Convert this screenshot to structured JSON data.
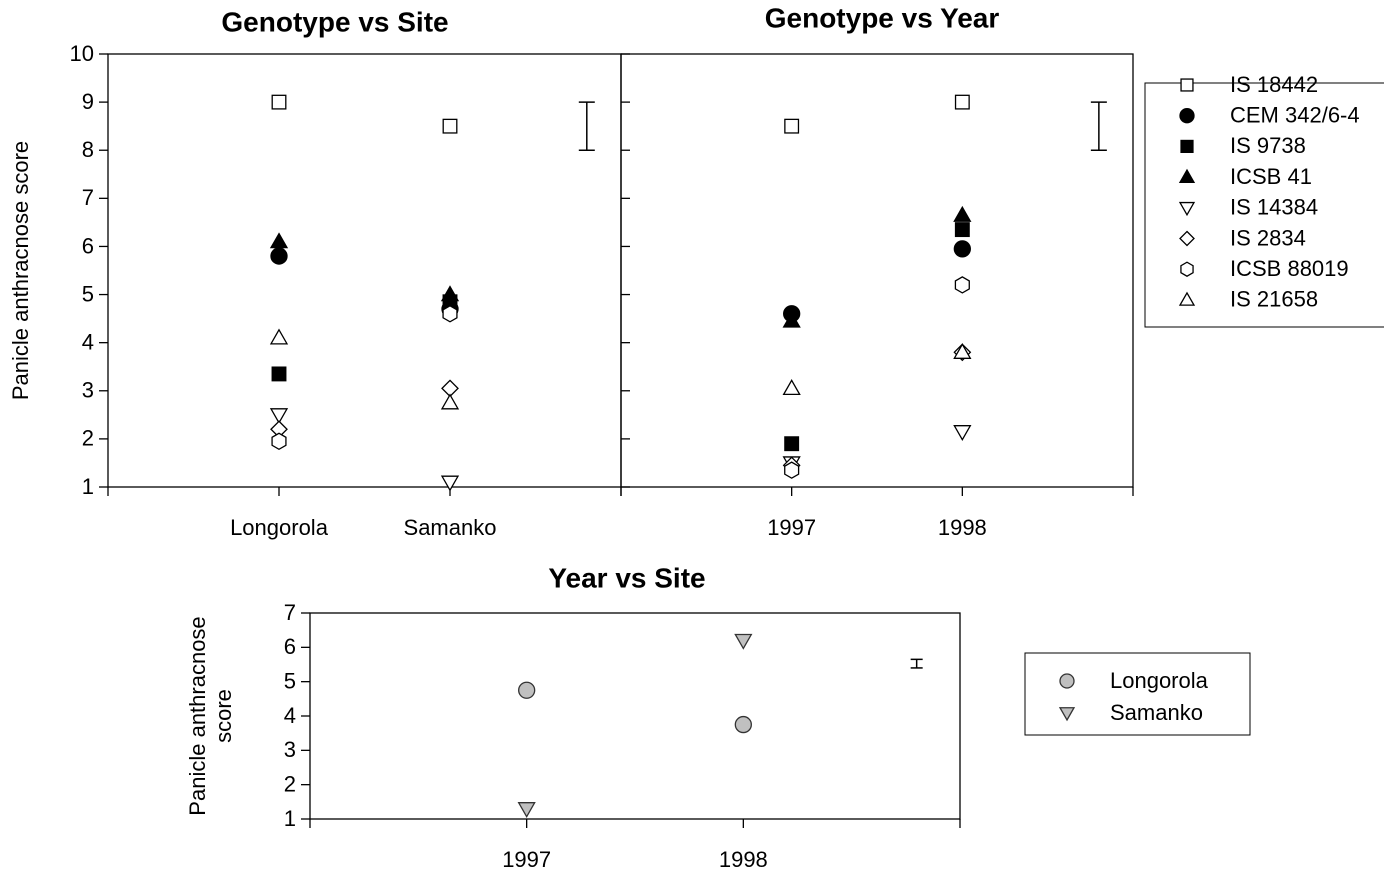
{
  "chart_data": [
    {
      "type": "scatter",
      "title": "Genotype vs Site",
      "ylabel": [
        "Panicle anthracnose score"
      ],
      "categories": [
        "Longorola",
        "Samanko"
      ],
      "ylim": [
        1,
        10
      ],
      "yticks": [
        1,
        2,
        3,
        4,
        5,
        6,
        7,
        8,
        9,
        10
      ],
      "ytick_labels": true,
      "legend": true,
      "series": [
        {
          "name": "IS 18442",
          "marker": "square",
          "color": "#ffffff",
          "values": [
            9.0,
            8.5
          ]
        },
        {
          "name": "CEM 342/6-4",
          "marker": "circle",
          "color": "#000000",
          "values": [
            5.8,
            4.7
          ]
        },
        {
          "name": "IS 9738",
          "marker": "square",
          "color": "#000000",
          "values": [
            3.35,
            4.85
          ]
        },
        {
          "name": "ICSB 41",
          "marker": "triangle",
          "color": "#000000",
          "values": [
            6.1,
            5.0
          ]
        },
        {
          "name": "IS 14384",
          "marker": "triangle-down",
          "color": "#ffffff",
          "values": [
            2.5,
            1.1
          ]
        },
        {
          "name": "IS 2834",
          "marker": "diamond",
          "color": "#ffffff",
          "values": [
            2.2,
            3.05
          ]
        },
        {
          "name": "ICSB 88019",
          "marker": "hexagon",
          "color": "#ffffff",
          "values": [
            1.95,
            4.6
          ]
        },
        {
          "name": "IS 21658",
          "marker": "triangle",
          "color": "#ffffff",
          "values": [
            4.1,
            2.75
          ]
        }
      ],
      "error_bar": {
        "low": 8,
        "high": 9
      }
    },
    {
      "type": "scatter",
      "title": "Genotype vs Year",
      "categories": [
        "1997",
        "1998"
      ],
      "ylim": [
        1,
        10
      ],
      "yticks": [
        1,
        2,
        3,
        4,
        5,
        6,
        7,
        8,
        9,
        10
      ],
      "ytick_labels": false,
      "legend": false,
      "series": [
        {
          "marker": "square",
          "color": "#ffffff",
          "values": [
            8.5,
            9.0
          ]
        },
        {
          "marker": "circle",
          "color": "#000000",
          "values": [
            4.6,
            5.95
          ]
        },
        {
          "marker": "square",
          "color": "#000000",
          "values": [
            1.9,
            6.35
          ]
        },
        {
          "marker": "triangle",
          "color": "#000000",
          "values": [
            4.45,
            6.65
          ]
        },
        {
          "marker": "triangle-down",
          "color": "#ffffff",
          "values": [
            1.5,
            2.15
          ]
        },
        {
          "marker": "diamond",
          "color": "#ffffff",
          "values": [
            1.45,
            3.8
          ]
        },
        {
          "marker": "hexagon",
          "color": "#ffffff",
          "values": [
            1.35,
            5.2
          ]
        },
        {
          "marker": "triangle",
          "color": "#ffffff",
          "values": [
            3.05,
            3.8
          ]
        }
      ],
      "error_bar": {
        "low": 8,
        "high": 9
      }
    },
    {
      "type": "scatter",
      "title": "Year vs Site",
      "ylabel": [
        "Panicle anthracnose",
        "score"
      ],
      "categories": [
        "1997",
        "1998"
      ],
      "ylim": [
        1,
        7
      ],
      "yticks": [
        1,
        2,
        3,
        4,
        5,
        6,
        7
      ],
      "ytick_labels": true,
      "legend": true,
      "series": [
        {
          "name": "Longorola",
          "marker": "circle",
          "color": "#c0c0c0",
          "values": [
            4.75,
            3.75
          ]
        },
        {
          "name": "Samanko",
          "marker": "triangle-down",
          "color": "#c0c0c0",
          "values": [
            1.3,
            6.2
          ]
        }
      ],
      "error_bar": {
        "low": 5.4,
        "high": 5.65
      }
    }
  ]
}
